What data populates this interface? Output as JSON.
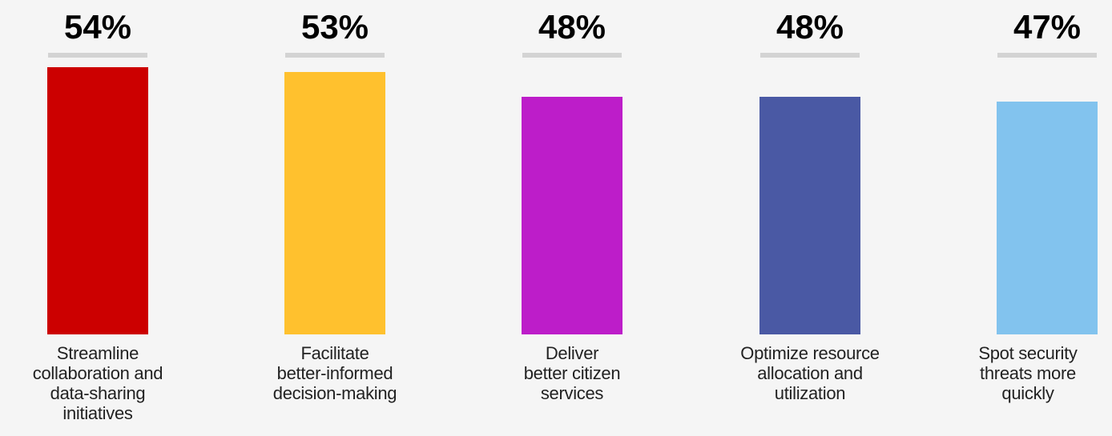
{
  "chart_data": {
    "type": "bar",
    "categories": [
      "Streamline\ncollaboration and\ndata-sharing\ninitiatives",
      "Facilitate\nbetter-informed\ndecision-making",
      "Deliver\nbetter citizen\nservices",
      "Optimize resource\nallocation and\nutilization",
      "Spot security\nthreats more\nquickly"
    ],
    "values": [
      54,
      53,
      48,
      48,
      47
    ],
    "value_labels": [
      "54%",
      "53%",
      "48%",
      "48%",
      "47%"
    ],
    "colors": [
      "#cc0000",
      "#ffc12e",
      "#bd1dc9",
      "#4a59a4",
      "#82c3ee"
    ],
    "ylim": [
      0,
      54
    ]
  }
}
